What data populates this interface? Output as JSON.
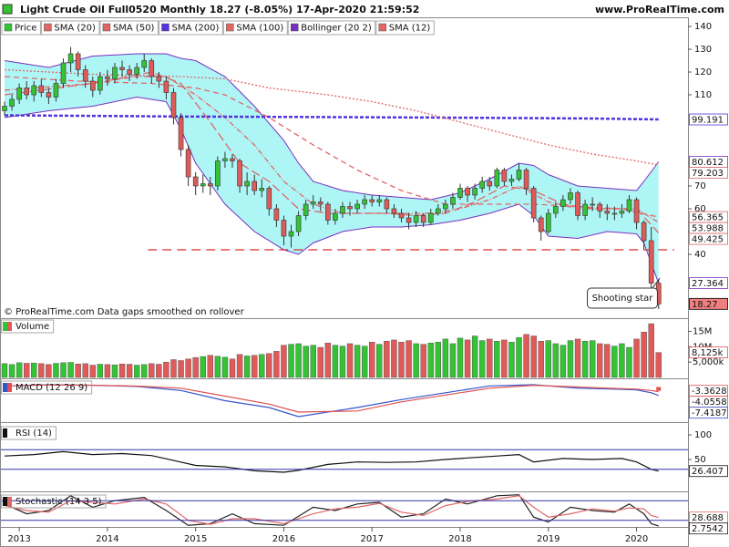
{
  "header": {
    "title": "Light Crude Oil Full0520 Monthly 18.27 (-8.05%) 17-Apr-2020 21:59:52",
    "site": "www.ProRealTime.com"
  },
  "chart_data": [
    {
      "type": "candlestick",
      "ylim": [
        12,
        144
      ],
      "yticks": [
        40,
        50,
        60,
        70,
        110,
        120,
        130,
        140
      ],
      "xlim": [
        -0.62,
        93
      ],
      "xticks": [
        {
          "value": 2,
          "label": "2013"
        },
        {
          "value": 14,
          "label": "2014"
        },
        {
          "value": 26,
          "label": "2015"
        },
        {
          "value": 38,
          "label": "2016"
        },
        {
          "value": 50,
          "label": "2017"
        },
        {
          "value": 62,
          "label": "2018"
        },
        {
          "value": 74,
          "label": "2019"
        },
        {
          "value": 86,
          "label": "2020"
        }
      ],
      "hline": 42,
      "hline_color": "#d92b2b",
      "annotation": "Shooting star",
      "footnote": "© ProRealTime.com  Data gaps smoothed on rollover",
      "series": [
        {
          "name": "Price",
          "up_color": "#35c235",
          "down_color": "#e05a5a",
          "label_fill": "#f08080",
          "open": [
            103,
            105,
            108,
            113,
            110,
            114,
            111,
            109,
            115,
            124,
            128,
            121,
            116,
            112,
            118,
            117,
            122,
            121,
            119,
            122,
            125,
            118,
            116,
            111,
            100,
            86,
            74,
            70,
            71,
            70,
            81,
            82,
            81,
            70,
            72,
            68,
            69,
            60,
            55,
            48,
            50,
            57,
            62,
            63,
            62,
            55,
            58,
            61,
            60,
            62,
            64,
            63,
            64,
            60,
            58,
            56,
            54,
            57,
            54,
            58,
            60,
            62,
            65,
            69,
            66,
            69,
            72,
            70,
            77,
            72,
            73,
            77,
            69,
            56,
            50,
            58,
            61,
            64,
            67,
            57,
            62,
            62,
            59,
            58,
            58,
            59,
            64,
            54,
            46,
            27.36
          ],
          "high": [
            107,
            110,
            115,
            116,
            116,
            117,
            113,
            117,
            126,
            131,
            129,
            123,
            118,
            120,
            121,
            124,
            125,
            123,
            124,
            128,
            126,
            120,
            118,
            113,
            102,
            88,
            76,
            75,
            74,
            83,
            85,
            84,
            82,
            76,
            75,
            73,
            70,
            62,
            57,
            53,
            59,
            64,
            66,
            65,
            63,
            60,
            63,
            63,
            64,
            66,
            66,
            66,
            65,
            62,
            60,
            58,
            59,
            58,
            60,
            62,
            64,
            67,
            71,
            70,
            71,
            74,
            74,
            78,
            78,
            75,
            80,
            78,
            70,
            57,
            60,
            63,
            66,
            69,
            68,
            64,
            65,
            63,
            62,
            61,
            62,
            66,
            65,
            55,
            52,
            29
          ],
          "low": [
            101,
            103,
            106,
            108,
            107,
            109,
            106,
            107,
            113,
            120,
            118,
            113,
            109,
            110,
            114,
            115,
            118,
            116,
            117,
            120,
            115,
            113,
            108,
            97,
            83,
            70,
            66,
            67,
            66,
            68,
            78,
            78,
            67,
            66,
            66,
            65,
            57,
            52,
            44,
            43,
            48,
            55,
            60,
            59,
            53,
            53,
            56,
            57,
            58,
            60,
            61,
            61,
            58,
            56,
            54,
            51,
            52,
            52,
            53,
            57,
            58,
            60,
            64,
            63,
            64,
            67,
            68,
            69,
            70,
            70,
            72,
            66,
            54,
            46,
            49,
            56,
            59,
            62,
            55,
            55,
            59,
            56,
            55,
            55,
            56,
            58,
            51,
            42,
            24,
            16
          ],
          "close": [
            105,
            108,
            113,
            110,
            114,
            111,
            109,
            115,
            124,
            128,
            121,
            116,
            112,
            118,
            117,
            122,
            121,
            119,
            122,
            125,
            118,
            116,
            111,
            100,
            86,
            74,
            70,
            71,
            70,
            81,
            82,
            81,
            70,
            72,
            68,
            69,
            60,
            55,
            48,
            50,
            57,
            62,
            63,
            62,
            55,
            58,
            61,
            60,
            62,
            64,
            63,
            64,
            60,
            58,
            56,
            54,
            57,
            54,
            58,
            60,
            62,
            65,
            69,
            66,
            69,
            72,
            70,
            77,
            72,
            73,
            77,
            69,
            56,
            50,
            58,
            61,
            64,
            67,
            57,
            62,
            62,
            59,
            58,
            58,
            59,
            64,
            54,
            46,
            27.36,
            18.27
          ]
        },
        {
          "name": "SMA (20)",
          "color": "#e06666",
          "dash": "6 2 1 2",
          "x": [
            0,
            12,
            18,
            22,
            26,
            30,
            34,
            38,
            42,
            46,
            50,
            54,
            58,
            62,
            66,
            70,
            74,
            78,
            82,
            86,
            89
          ],
          "values": [
            112,
            115,
            118,
            118,
            110,
            100,
            88,
            72,
            62,
            58,
            58,
            58,
            58,
            60,
            64,
            70,
            63,
            60,
            60,
            60,
            53.988
          ]
        },
        {
          "name": "SMA (50)",
          "color": "#e06666",
          "dash": "6 4",
          "x": [
            0,
            10,
            20,
            26,
            30,
            36,
            42,
            48,
            54,
            60,
            66,
            72,
            78,
            84,
            89
          ],
          "values": [
            118,
            116,
            115,
            113,
            110,
            100,
            88,
            77,
            68,
            62,
            62,
            62,
            61,
            60,
            56.365
          ]
        },
        {
          "name": "SMA (200)",
          "color": "#5533dd",
          "dash": "4 2",
          "x": [
            0,
            10,
            24,
            40,
            60,
            80,
            89
          ],
          "values": [
            101,
            100.8,
            100.5,
            100.3,
            100,
            99.6,
            99.191
          ]
        },
        {
          "name": "SMA (100)",
          "color": "#e06666",
          "dash": "2 2",
          "x": [
            0,
            12,
            24,
            30,
            36,
            44,
            50,
            56,
            62,
            68,
            74,
            80,
            86,
            89
          ],
          "values": [
            121,
            119,
            118,
            117,
            113,
            110,
            107,
            103,
            98,
            93,
            88,
            84,
            81,
            79.203
          ]
        },
        {
          "name": "Bollinger (20 2)",
          "color": "#7b2fbf",
          "fill": "#aef6f6",
          "x": [
            0,
            6,
            12,
            18,
            22,
            24,
            26,
            30,
            34,
            38,
            40,
            42,
            46,
            50,
            54,
            58,
            62,
            66,
            70,
            72,
            74,
            78,
            82,
            86,
            87,
            89
          ],
          "upper": [
            125,
            122,
            127,
            128,
            128,
            126,
            125,
            118,
            105,
            90,
            80,
            72,
            68,
            66,
            65,
            64,
            67,
            73,
            80,
            79,
            75,
            70,
            69,
            68,
            72,
            80.612
          ],
          "lower": [
            100,
            103,
            105,
            109,
            107,
            95,
            80,
            62,
            50,
            42,
            40,
            45,
            50,
            52,
            52,
            53,
            55,
            58,
            62,
            57,
            48,
            47,
            50,
            49,
            45,
            27.364
          ]
        },
        {
          "name": "SMA (12)",
          "color": "#e06666",
          "dash": "10 4",
          "x": [
            0,
            12,
            20,
            24,
            28,
            32,
            36,
            40,
            44,
            48,
            52,
            56,
            60,
            64,
            68,
            72,
            76,
            80,
            84,
            86,
            89
          ],
          "values": [
            110,
            115,
            120,
            115,
            98,
            80,
            72,
            60,
            58,
            58,
            58,
            57,
            58,
            63,
            70,
            68,
            62,
            60,
            60,
            60,
            49.425
          ]
        }
      ]
    },
    {
      "type": "bar",
      "title": "Volume",
      "ylim": [
        0,
        19000000
      ],
      "yticks": [
        {
          "value": 5000000,
          "label": "5,000k"
        },
        {
          "value": 10000000,
          "label": "10M"
        },
        {
          "value": 15000000,
          "label": "15M"
        }
      ],
      "values": [
        4500000.0,
        4200000.0,
        4800000.0,
        4600000.0,
        4700000.0,
        4500000.0,
        4200000.0,
        4600000.0,
        4800000.0,
        4900000.0,
        4400000.0,
        4500000.0,
        4000000.0,
        4300000.0,
        4200000.0,
        4100000.0,
        4400000.0,
        4300000.0,
        4000000.0,
        4200000.0,
        4500000.0,
        4300000.0,
        5000000.0,
        5800000.0,
        5500000.0,
        6000000.0,
        6500000.0,
        6800000.0,
        7200000.0,
        6900000.0,
        6600000.0,
        6000000.0,
        7500000.0,
        7000000.0,
        7200000.0,
        7500000.0,
        7800000.0,
        8500000.0,
        10500000.0,
        10800000.0,
        11000000.0,
        10200000.0,
        10500000.0,
        9800000.0,
        11200000.0,
        10500000.0,
        10200000.0,
        11000000.0,
        10500000.0,
        10200000.0,
        11500000.0,
        10800000.0,
        11800000.0,
        12200000.0,
        11500000.0,
        12000000.0,
        11000000.0,
        10800000.0,
        11200000.0,
        11500000.0,
        12500000.0,
        11000000.0,
        12800000.0,
        12200000.0,
        13500000.0,
        12000000.0,
        12500000.0,
        11800000.0,
        12200000.0,
        11500000.0,
        13000000.0,
        14000000.0,
        13500000.0,
        11800000.0,
        12000000.0,
        11000000.0,
        10500000.0,
        12000000.0,
        12500000.0,
        11800000.0,
        12000000.0,
        11000000.0,
        10800000.0,
        10200000.0,
        11000000.0,
        9800000.0,
        12500000.0,
        14800000.0,
        17500000.0,
        8125000
      ],
      "last_value_label": "8,125k",
      "label_color": "#e05050"
    },
    {
      "type": "line",
      "title": "MACD (12 26 9)",
      "ylim": [
        -30,
        6
      ],
      "histogram": -3.3628,
      "histogram_color": "#e05050",
      "series": [
        {
          "color": "#3355cc",
          "x": [
            0,
            6,
            12,
            18,
            24,
            30,
            36,
            40,
            48,
            54,
            60,
            66,
            72,
            78,
            84,
            86,
            88,
            89
          ],
          "values": [
            1,
            2,
            1.5,
            0.5,
            -3,
            -12,
            -18,
            -26,
            -18,
            -11,
            -5,
            1,
            2,
            -1,
            -2,
            -2.5,
            -5,
            -7.4187
          ]
        },
        {
          "color": "#e05050",
          "x": [
            0,
            6,
            12,
            18,
            24,
            30,
            36,
            40,
            48,
            54,
            60,
            66,
            72,
            78,
            84,
            86,
            88,
            89
          ],
          "values": [
            1,
            1.8,
            1.6,
            0.8,
            -1,
            -8,
            -15,
            -22,
            -21,
            -13,
            -7,
            -1,
            1.5,
            0,
            -1.5,
            -1.8,
            -3,
            -4.0558
          ]
        }
      ]
    },
    {
      "type": "line",
      "title": "RSI (14)",
      "ylim": [
        0,
        100
      ],
      "yticks": [
        50,
        100
      ],
      "levels": [
        70,
        30
      ],
      "level_color": "#3333aa",
      "series": [
        {
          "color": "#111111",
          "x": [
            0,
            4,
            8,
            12,
            16,
            20,
            23,
            26,
            30,
            34,
            38,
            40,
            44,
            48,
            52,
            56,
            60,
            64,
            68,
            70,
            72,
            76,
            80,
            84,
            86,
            88,
            89
          ],
          "values": [
            57,
            60,
            66,
            60,
            62,
            58,
            48,
            38,
            35,
            27,
            24,
            28,
            40,
            45,
            44,
            45,
            50,
            54,
            58,
            60,
            45,
            52,
            50,
            52,
            45,
            30,
            26.407
          ]
        }
      ]
    },
    {
      "type": "line",
      "title": "Stochastic (14 3 5)",
      "ylim": [
        0,
        100
      ],
      "levels": [
        80,
        20
      ],
      "level_color": "#3333aa",
      "series": [
        {
          "color": "#222222",
          "x": [
            0,
            3,
            6,
            9,
            12,
            15,
            19,
            22,
            25,
            28,
            31,
            34,
            38,
            42,
            45,
            48,
            51,
            54,
            57,
            60,
            63,
            67,
            70,
            72,
            74,
            77,
            80,
            83,
            85,
            87,
            88,
            89
          ],
          "values": [
            70,
            40,
            50,
            95,
            60,
            80,
            90,
            50,
            5,
            10,
            40,
            10,
            5,
            60,
            50,
            70,
            75,
            30,
            40,
            85,
            70,
            95,
            98,
            30,
            15,
            60,
            50,
            45,
            70,
            40,
            10,
            2.7542
          ]
        },
        {
          "color": "#e06666",
          "x": [
            0,
            3,
            6,
            9,
            12,
            15,
            19,
            22,
            25,
            28,
            31,
            34,
            38,
            42,
            45,
            48,
            51,
            54,
            57,
            60,
            63,
            67,
            70,
            72,
            74,
            77,
            80,
            83,
            85,
            87,
            88,
            89
          ],
          "values": [
            65,
            50,
            45,
            80,
            75,
            70,
            85,
            70,
            20,
            8,
            25,
            25,
            10,
            40,
            55,
            60,
            72,
            45,
            35,
            65,
            78,
            85,
            95,
            60,
            30,
            40,
            55,
            48,
            58,
            55,
            35,
            28.688
          ]
        }
      ]
    }
  ]
}
